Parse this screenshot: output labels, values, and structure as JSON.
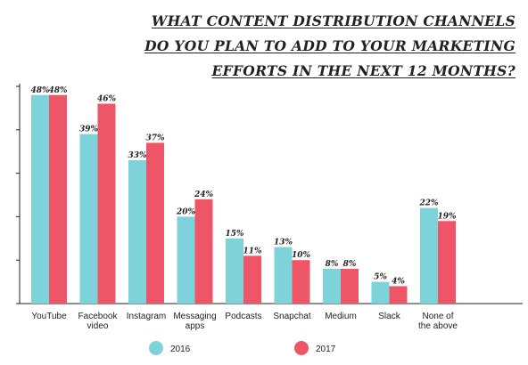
{
  "chart_data": {
    "type": "bar",
    "title_lines": [
      "WHAT CONTENT DISTRIBUTION CHANNELS",
      "DO YOU PLAN TO ADD TO YOUR MARKETING",
      "EFFORTS IN THE NEXT 12 MONTHS?"
    ],
    "categories": [
      [
        "YouTube"
      ],
      [
        "Facebook",
        "video"
      ],
      [
        "Instagram"
      ],
      [
        "Messaging",
        "apps"
      ],
      [
        "Podcasts"
      ],
      [
        "Snapchat"
      ],
      [
        "Medium"
      ],
      [
        "Slack"
      ],
      [
        "None of",
        "the above"
      ]
    ],
    "series": [
      {
        "name": "2016",
        "color": "#7ed3da",
        "values": [
          48,
          39,
          33,
          20,
          15,
          13,
          8,
          5,
          22
        ]
      },
      {
        "name": "2017",
        "color": "#ee5566",
        "values": [
          48,
          46,
          37,
          24,
          11,
          10,
          8,
          4,
          19
        ]
      }
    ],
    "value_suffix": "%",
    "ylim": [
      0,
      50
    ],
    "grid": false,
    "legend_position": "bottom"
  }
}
